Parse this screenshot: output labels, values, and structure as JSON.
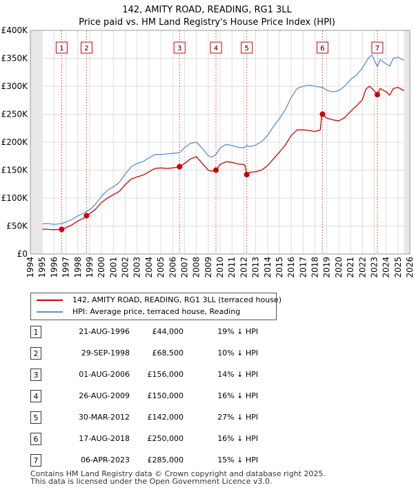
{
  "title_line1": "142, AMITY ROAD, READING, RG1 3LL",
  "title_line2": "Price paid vs. HM Land Registry's House Price Index (HPI)",
  "chart_data": {
    "type": "line",
    "xlabel": "",
    "ylabel": "",
    "xlim": [
      1994,
      2026
    ],
    "ylim": [
      0,
      400000
    ],
    "y_ticks": [
      {
        "value": 0,
        "label": "£0"
      },
      {
        "value": 50000,
        "label": "£50K"
      },
      {
        "value": 100000,
        "label": "£100K"
      },
      {
        "value": 150000,
        "label": "£150K"
      },
      {
        "value": 200000,
        "label": "£200K"
      },
      {
        "value": 250000,
        "label": "£250K"
      },
      {
        "value": 300000,
        "label": "£300K"
      },
      {
        "value": 350000,
        "label": "£350K"
      },
      {
        "value": 400000,
        "label": "£400K"
      }
    ],
    "x_ticks": [
      "1994",
      "1995",
      "1996",
      "1997",
      "1998",
      "1999",
      "2000",
      "2001",
      "2002",
      "2003",
      "2004",
      "2005",
      "2006",
      "2007",
      "2008",
      "2009",
      "2010",
      "2011",
      "2012",
      "2013",
      "2014",
      "2015",
      "2016",
      "2017",
      "2018",
      "2019",
      "2020",
      "2021",
      "2022",
      "2023",
      "2024",
      "2025",
      "2026"
    ],
    "data_start": 1995.0,
    "data_end": 2025.5,
    "series": [
      {
        "name": "142, AMITY ROAD, READING, RG1 3LL (terraced house)",
        "color": "#cc0000",
        "points": [
          [
            1995.0,
            44500
          ],
          [
            1995.5,
            44000
          ],
          [
            1996.0,
            43500
          ],
          [
            1996.5,
            43800
          ],
          [
            1996.64,
            44000
          ],
          [
            1997.0,
            47000
          ],
          [
            1997.5,
            52000
          ],
          [
            1998.0,
            59000
          ],
          [
            1998.5,
            64000
          ],
          [
            1998.74,
            68500
          ],
          [
            1999.0,
            72000
          ],
          [
            1999.5,
            80000
          ],
          [
            2000.0,
            92000
          ],
          [
            2000.5,
            100000
          ],
          [
            2001.0,
            106000
          ],
          [
            2001.5,
            112000
          ],
          [
            2002.0,
            124000
          ],
          [
            2002.5,
            134000
          ],
          [
            2003.0,
            138000
          ],
          [
            2003.5,
            141000
          ],
          [
            2004.0,
            147000
          ],
          [
            2004.5,
            153000
          ],
          [
            2005.0,
            154000
          ],
          [
            2005.5,
            153000
          ],
          [
            2006.0,
            154000
          ],
          [
            2006.58,
            156000
          ],
          [
            2007.0,
            162000
          ],
          [
            2007.5,
            170000
          ],
          [
            2008.0,
            174000
          ],
          [
            2008.5,
            162000
          ],
          [
            2009.0,
            150000
          ],
          [
            2009.3,
            148000
          ],
          [
            2009.65,
            150000
          ],
          [
            2010.0,
            160000
          ],
          [
            2010.5,
            165000
          ],
          [
            2011.0,
            164000
          ],
          [
            2011.5,
            161000
          ],
          [
            2012.0,
            160000
          ],
          [
            2012.1,
            158000
          ],
          [
            2012.25,
            142000
          ],
          [
            2012.5,
            146000
          ],
          [
            2013.0,
            147000
          ],
          [
            2013.5,
            150000
          ],
          [
            2014.0,
            158000
          ],
          [
            2014.5,
            170000
          ],
          [
            2015.0,
            182000
          ],
          [
            2015.5,
            195000
          ],
          [
            2016.0,
            212000
          ],
          [
            2016.5,
            222000
          ],
          [
            2017.0,
            222000
          ],
          [
            2017.5,
            221000
          ],
          [
            2018.0,
            219000
          ],
          [
            2018.45,
            222000
          ],
          [
            2018.55,
            245000
          ],
          [
            2018.63,
            250000
          ],
          [
            2019.0,
            243000
          ],
          [
            2019.5,
            240000
          ],
          [
            2020.0,
            238000
          ],
          [
            2020.5,
            244000
          ],
          [
            2021.0,
            255000
          ],
          [
            2021.5,
            265000
          ],
          [
            2022.0,
            276000
          ],
          [
            2022.3,
            295000
          ],
          [
            2022.6,
            300000
          ],
          [
            2023.0,
            292000
          ],
          [
            2023.26,
            285000
          ],
          [
            2023.5,
            296000
          ],
          [
            2024.0,
            290000
          ],
          [
            2024.3,
            284000
          ],
          [
            2024.6,
            296000
          ],
          [
            2025.0,
            298000
          ],
          [
            2025.5,
            292000
          ]
        ]
      },
      {
        "name": "HPI: Average price, terraced house, Reading",
        "color": "#5b8fd0",
        "points": [
          [
            1995.0,
            54000
          ],
          [
            1995.5,
            54500
          ],
          [
            1996.0,
            53000
          ],
          [
            1996.64,
            54300
          ],
          [
            1997.0,
            57000
          ],
          [
            1997.5,
            62000
          ],
          [
            1998.0,
            68000
          ],
          [
            1998.74,
            76000
          ],
          [
            1999.0,
            79000
          ],
          [
            1999.5,
            89000
          ],
          [
            2000.0,
            103000
          ],
          [
            2000.5,
            114000
          ],
          [
            2001.0,
            120000
          ],
          [
            2001.5,
            128000
          ],
          [
            2002.0,
            143000
          ],
          [
            2002.5,
            156000
          ],
          [
            2003.0,
            162000
          ],
          [
            2003.5,
            165000
          ],
          [
            2004.0,
            172000
          ],
          [
            2004.5,
            178000
          ],
          [
            2005.0,
            178000
          ],
          [
            2005.5,
            179000
          ],
          [
            2006.0,
            180000
          ],
          [
            2006.58,
            181000
          ],
          [
            2007.0,
            190000
          ],
          [
            2007.5,
            198000
          ],
          [
            2008.0,
            200000
          ],
          [
            2008.5,
            189000
          ],
          [
            2009.0,
            176000
          ],
          [
            2009.3,
            173000
          ],
          [
            2009.65,
            178000
          ],
          [
            2010.0,
            190000
          ],
          [
            2010.5,
            196000
          ],
          [
            2011.0,
            194000
          ],
          [
            2011.5,
            191000
          ],
          [
            2012.0,
            190000
          ],
          [
            2012.25,
            194000
          ],
          [
            2012.5,
            192000
          ],
          [
            2013.0,
            195000
          ],
          [
            2013.5,
            201000
          ],
          [
            2014.0,
            212000
          ],
          [
            2014.5,
            228000
          ],
          [
            2015.0,
            242000
          ],
          [
            2015.5,
            258000
          ],
          [
            2016.0,
            280000
          ],
          [
            2016.5,
            296000
          ],
          [
            2017.0,
            300000
          ],
          [
            2017.5,
            302000
          ],
          [
            2018.0,
            300000
          ],
          [
            2018.63,
            298000
          ],
          [
            2019.0,
            293000
          ],
          [
            2019.5,
            290000
          ],
          [
            2020.0,
            292000
          ],
          [
            2020.5,
            300000
          ],
          [
            2021.0,
            312000
          ],
          [
            2021.5,
            320000
          ],
          [
            2022.0,
            333000
          ],
          [
            2022.5,
            350000
          ],
          [
            2022.8,
            356000
          ],
          [
            2023.26,
            335000
          ],
          [
            2023.5,
            348000
          ],
          [
            2024.0,
            340000
          ],
          [
            2024.3,
            336000
          ],
          [
            2024.6,
            350000
          ],
          [
            2025.0,
            352000
          ],
          [
            2025.5,
            346000
          ]
        ]
      }
    ],
    "sales": [
      {
        "num": "1",
        "x": 1996.64,
        "price": 44000
      },
      {
        "num": "2",
        "x": 1998.74,
        "price": 68500
      },
      {
        "num": "3",
        "x": 2006.58,
        "price": 156000
      },
      {
        "num": "4",
        "x": 2009.65,
        "price": 150000
      },
      {
        "num": "5",
        "x": 2012.25,
        "price": 142000
      },
      {
        "num": "6",
        "x": 2018.63,
        "price": 250000
      },
      {
        "num": "7",
        "x": 2023.26,
        "price": 285000
      }
    ]
  },
  "legend": {
    "property_label": "142, AMITY ROAD, READING, RG1 3LL (terraced house)",
    "hpi_label": "HPI: Average price, terraced house, Reading"
  },
  "sales_table": [
    {
      "num": "1",
      "date": "21-AUG-1996",
      "price": "£44,000",
      "hpi": "19% ↓ HPI"
    },
    {
      "num": "2",
      "date": "29-SEP-1998",
      "price": "£68,500",
      "hpi": "10% ↓ HPI"
    },
    {
      "num": "3",
      "date": "01-AUG-2006",
      "price": "£156,000",
      "hpi": "14% ↓ HPI"
    },
    {
      "num": "4",
      "date": "26-AUG-2009",
      "price": "£150,000",
      "hpi": "16% ↓ HPI"
    },
    {
      "num": "5",
      "date": "30-MAR-2012",
      "price": "£142,000",
      "hpi": "27% ↓ HPI"
    },
    {
      "num": "6",
      "date": "17-AUG-2018",
      "price": "£250,000",
      "hpi": "16% ↓ HPI"
    },
    {
      "num": "7",
      "date": "06-APR-2023",
      "price": "£285,000",
      "hpi": "15% ↓ HPI"
    }
  ],
  "footer": {
    "line1": "Contains HM Land Registry data © Crown copyright and database right 2025.",
    "line2": "This data is licensed under the Open Government Licence v3.0."
  }
}
